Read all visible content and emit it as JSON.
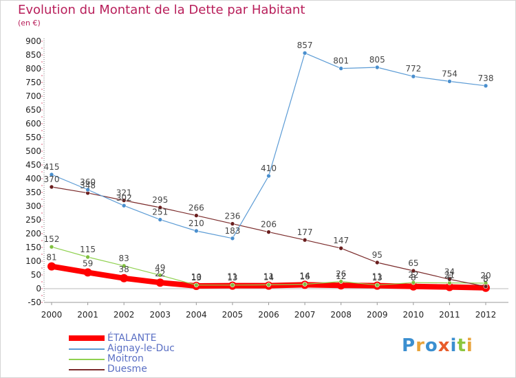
{
  "title": "Evolution du Montant de la Dette par Habitant",
  "subtitle": "(en €)",
  "logo": {
    "text": "Proxiti",
    "colors": [
      "#3b8fd0",
      "#e8a33a",
      "#3b8fd0",
      "#e85c2a",
      "#3b8fd0",
      "#8cc63e",
      "#e8a33a"
    ]
  },
  "chart_data": {
    "type": "line",
    "x": [
      2000,
      2001,
      2002,
      2003,
      2004,
      2005,
      2006,
      2007,
      2008,
      2009,
      2010,
      2011,
      2012
    ],
    "ylim": [
      -50,
      900
    ],
    "yticks": [
      -50,
      0,
      50,
      100,
      150,
      200,
      250,
      300,
      350,
      400,
      450,
      500,
      550,
      600,
      650,
      700,
      750,
      800,
      850,
      900
    ],
    "grid": false,
    "legend": "bottom-left",
    "series": [
      {
        "name": "ÉTALANTE",
        "color": "#ff0000",
        "values": [
          81,
          59,
          38,
          22,
          10,
          11,
          11,
          14,
          12,
          11,
          8,
          6,
          3
        ],
        "labels": [
          "81",
          "59",
          "38",
          "22",
          "10",
          "11",
          "11",
          "14",
          "12",
          "11",
          "8",
          "6",
          "3"
        ]
      },
      {
        "name": "Aignay-le-Duc",
        "color": "#5b9bd5",
        "values": [
          415,
          360,
          302,
          251,
          210,
          183,
          410,
          857,
          801,
          805,
          772,
          754,
          738
        ],
        "labels": [
          "415",
          "360",
          "302",
          "251",
          "210",
          "183",
          "410",
          "857",
          "801",
          "805",
          "772",
          "754",
          "738"
        ]
      },
      {
        "name": "Moitron",
        "color": "#8fd14f",
        "values": [
          152,
          115,
          83,
          49,
          13,
          13,
          14,
          16,
          26,
          13,
          22,
          21,
          20
        ],
        "labels": [
          "152",
          "115",
          "83",
          "49",
          "13",
          "13",
          "14",
          "16",
          "26",
          "13",
          "22",
          "21",
          "20"
        ]
      },
      {
        "name": "Duesme",
        "color": "#7a2a2a",
        "values": [
          370,
          348,
          321,
          295,
          266,
          236,
          206,
          177,
          147,
          95,
          65,
          34,
          8
        ],
        "labels": [
          "370",
          "348",
          "321",
          "295",
          "266",
          "236",
          "206",
          "177",
          "147",
          "95",
          "65",
          "34",
          "8"
        ]
      }
    ]
  }
}
